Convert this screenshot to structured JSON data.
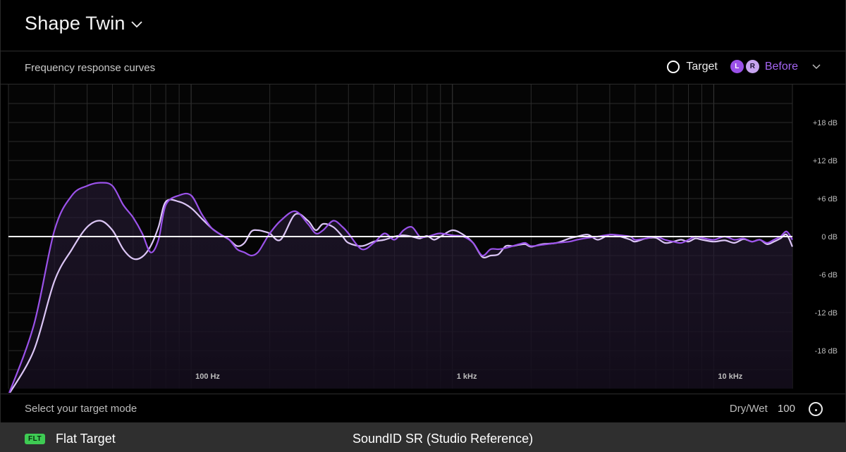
{
  "header": {
    "title": "Shape Twin"
  },
  "subbar": {
    "subtitle": "Frequency response curves",
    "target_label": "Target",
    "badge_left": "L",
    "badge_right": "R",
    "before_label": "Before"
  },
  "chart_data": {
    "type": "line",
    "x_scale": "log",
    "xlim_hz": [
      20,
      20000
    ],
    "ylim_db": [
      -24,
      24
    ],
    "x_tick_labels": [
      {
        "hz": 100,
        "label": "100 Hz"
      },
      {
        "hz": 1000,
        "label": "1 kHz"
      },
      {
        "hz": 10000,
        "label": "10 kHz"
      }
    ],
    "y_tick_labels": [
      {
        "db": 18,
        "label": "+18 dB"
      },
      {
        "db": 12,
        "label": "+12 dB"
      },
      {
        "db": 6,
        "label": "+6 dB"
      },
      {
        "db": 0,
        "label": "0 dB"
      },
      {
        "db": -6,
        "label": "-6 dB"
      },
      {
        "db": -12,
        "label": "-12 dB"
      },
      {
        "db": -18,
        "label": "-18 dB"
      }
    ],
    "grid": true,
    "colors": {
      "target": "#ffffff",
      "left": "#9b52ea",
      "right": "#dcc6f6"
    },
    "target_db": 0,
    "series": [
      {
        "name": "L",
        "x_hz": [
          20,
          25,
          30,
          35,
          40,
          45,
          50,
          55,
          60,
          65,
          70,
          75,
          80,
          90,
          100,
          110,
          120,
          130,
          140,
          150,
          160,
          170,
          180,
          190,
          200,
          220,
          250,
          280,
          300,
          320,
          350,
          380,
          400,
          450,
          500,
          550,
          600,
          650,
          700,
          750,
          800,
          850,
          900,
          1000,
          1100,
          1200,
          1300,
          1400,
          1500,
          1600,
          1700,
          1800,
          1900,
          2000,
          2200,
          2500,
          2800,
          3000,
          3300,
          3600,
          4000,
          4400,
          4800,
          5000,
          5500,
          6000,
          6500,
          7000,
          7500,
          8000,
          8500,
          9000,
          10000,
          11000,
          12000,
          13000,
          14000,
          15000,
          16000,
          17000,
          18000,
          19000,
          20000
        ],
        "y_db": [
          -25,
          -14,
          1,
          6.5,
          8,
          8.5,
          8,
          5,
          3,
          0.5,
          -2.5,
          -0.5,
          5,
          6.5,
          6.5,
          3.5,
          1.3,
          0.3,
          -0.5,
          -2,
          -2.5,
          -3,
          -2.5,
          -1,
          0.5,
          2.5,
          4,
          2,
          0.5,
          1,
          2.5,
          1.5,
          0.5,
          -2,
          -1,
          0.5,
          -0.5,
          1,
          1.5,
          0,
          0,
          0.3,
          0.5,
          0.2,
          0,
          -1,
          -3,
          -2,
          -2,
          -1.8,
          -1.5,
          -1.2,
          -1,
          -1.5,
          -1.3,
          -1,
          -0.8,
          -0.5,
          -0.2,
          0,
          0.3,
          0.2,
          0,
          -0.5,
          -0.3,
          0,
          -0.5,
          -0.8,
          -1,
          -0.5,
          0,
          -0.2,
          -0.5,
          0,
          -0.5,
          -0.3,
          -0.8,
          -0.5,
          -1,
          -0.5,
          0,
          0.8,
          -0.5
        ]
      },
      {
        "name": "R",
        "x_hz": [
          20,
          25,
          30,
          35,
          40,
          45,
          50,
          55,
          60,
          65,
          70,
          75,
          80,
          90,
          100,
          110,
          120,
          130,
          140,
          150,
          160,
          170,
          180,
          190,
          200,
          220,
          250,
          280,
          300,
          320,
          350,
          380,
          400,
          450,
          500,
          550,
          600,
          650,
          700,
          750,
          800,
          850,
          900,
          1000,
          1100,
          1200,
          1300,
          1400,
          1500,
          1600,
          1700,
          1800,
          1900,
          2000,
          2200,
          2500,
          2800,
          3000,
          3300,
          3600,
          4000,
          4400,
          4800,
          5000,
          5500,
          6000,
          6500,
          7000,
          7500,
          8000,
          8500,
          9000,
          10000,
          11000,
          12000,
          13000,
          14000,
          15000,
          16000,
          17000,
          18000,
          19000,
          20000
        ],
        "y_db": [
          -25,
          -18,
          -7,
          -2,
          1.5,
          2.5,
          1,
          -2,
          -3.5,
          -3.2,
          -1.5,
          1.5,
          5.5,
          5.5,
          4.5,
          2.8,
          1.3,
          0.3,
          -0.5,
          -1.5,
          -1,
          0.8,
          1,
          0.8,
          0.5,
          -0.5,
          3.5,
          2.5,
          1,
          2,
          1.5,
          0,
          -1,
          -1.5,
          -0.8,
          -0.5,
          0,
          0.2,
          0,
          -0.3,
          0.1,
          -0.5,
          0,
          1,
          0.3,
          -1,
          -3.2,
          -3,
          -2.8,
          -1.5,
          -1.5,
          -1.3,
          -1.2,
          -1.6,
          -1.2,
          -1,
          -0.3,
          0,
          0.3,
          -0.5,
          0.3,
          0,
          -0.5,
          -0.8,
          -0.3,
          -0.2,
          -1,
          -0.8,
          -0.5,
          -0.8,
          -0.3,
          -0.5,
          -0.8,
          -0.6,
          -1,
          -0.4,
          -0.8,
          -0.5,
          -1.2,
          -0.8,
          -0.3,
          0.3,
          -1.6
        ]
      }
    ]
  },
  "footer": {
    "mode_label": "Select your target mode",
    "drywet_label": "Dry/Wet",
    "drywet_value": "100"
  },
  "bottombar": {
    "flt_badge": "FLT",
    "target_name": "Flat Target",
    "profile_name": "SoundID SR (Studio Reference)"
  }
}
